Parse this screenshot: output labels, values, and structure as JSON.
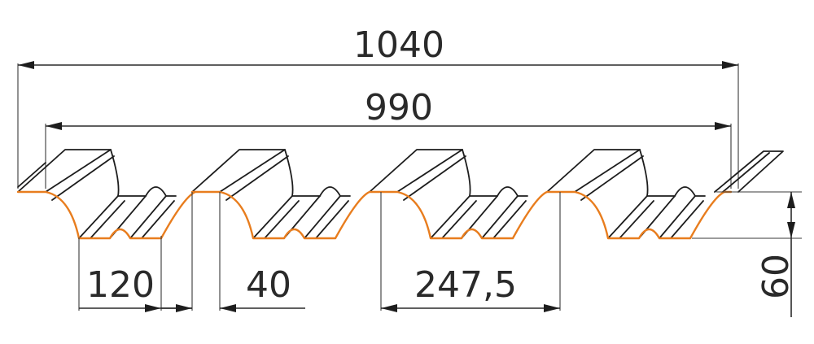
{
  "colors": {
    "profile_edge": "#e87d1e",
    "lines": "#1d1d1d",
    "text": "#2a2a2a",
    "background": "#ffffff"
  },
  "dimensions": {
    "total_width": "1040",
    "useful_width": "990",
    "valley_width": "120",
    "crest_width": "40",
    "pitch": "247,5",
    "height": "60"
  }
}
